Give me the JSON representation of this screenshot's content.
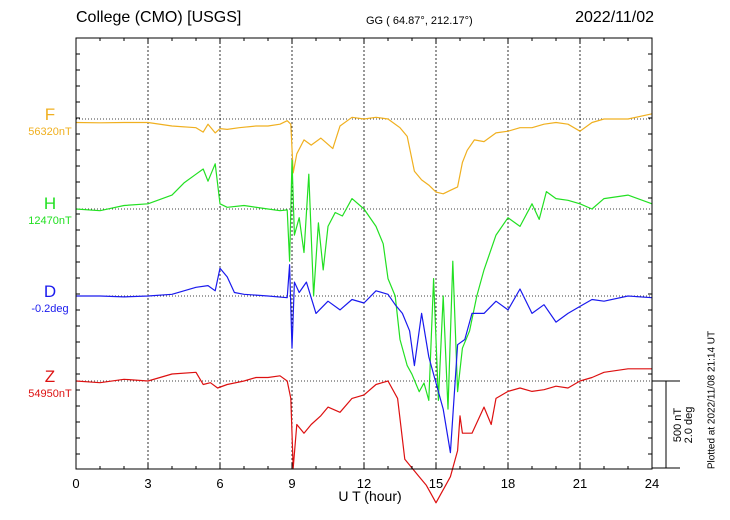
{
  "header": {
    "station": "College (CMO)  [USGS]",
    "coords": "GG ( 64.87°, 212.17°)",
    "date": "2022/11/02"
  },
  "plotted_note": "Plotted at 2022/11/08 21:14 UT",
  "scale": {
    "line1": "500 nT",
    "line2": "2.0 deg"
  },
  "chart_data": {
    "type": "line",
    "title": "College (CMO)  [USGS]",
    "xlabel": "U T (hour)",
    "xlim": [
      0,
      24
    ],
    "xticks": [
      0,
      3,
      6,
      9,
      12,
      15,
      18,
      21,
      24
    ],
    "grid": true,
    "y_units": "nT (500 nT per scale bar)",
    "series": [
      {
        "name": "F",
        "label": "F",
        "baseline_label": "56320nT",
        "color": "#f0b020",
        "x": [
          0,
          1,
          2,
          3,
          4,
          5,
          5.3,
          5.5,
          5.8,
          6,
          6.3,
          6.8,
          7.5,
          8,
          8.5,
          8.8,
          8.95,
          9.05,
          9.2,
          9.5,
          9.8,
          10.2,
          10.7,
          11,
          11.5,
          12,
          12.5,
          13,
          13.5,
          13.8,
          14.1,
          14.4,
          14.7,
          15,
          15.3,
          15.6,
          15.9,
          16.1,
          16.3,
          16.6,
          17,
          17.5,
          18,
          18.5,
          19,
          19.5,
          20,
          20.5,
          21,
          21.5,
          22,
          23,
          24
        ],
        "y": [
          -20,
          -22,
          -20,
          -20,
          -40,
          -50,
          -75,
          -30,
          -80,
          -55,
          -60,
          -50,
          -40,
          -40,
          -30,
          -10,
          -30,
          -310,
          -200,
          -120,
          -150,
          -110,
          -170,
          -40,
          10,
          0,
          10,
          0,
          -50,
          -100,
          -300,
          -350,
          -380,
          -420,
          -430,
          -410,
          -390,
          -250,
          -180,
          -120,
          -130,
          -80,
          -70,
          -50,
          -50,
          -30,
          -20,
          -30,
          -70,
          -20,
          0,
          0,
          30
        ]
      },
      {
        "name": "H",
        "label": "H",
        "baseline_label": "12470nT",
        "color": "#22e022",
        "x": [
          0,
          1,
          2,
          3,
          4,
          4.5,
          5,
          5.3,
          5.5,
          5.8,
          6,
          6.3,
          7,
          8,
          8.5,
          8.8,
          8.9,
          9,
          9.1,
          9.3,
          9.5,
          9.7,
          9.9,
          10.1,
          10.3,
          10.5,
          10.8,
          11.1,
          11.5,
          12,
          12.5,
          12.8,
          13,
          13.3,
          13.5,
          13.8,
          14,
          14.3,
          14.5,
          14.7,
          14.9,
          15.1,
          15.3,
          15.5,
          15.7,
          15.9,
          16.1,
          16.4,
          16.7,
          17,
          17.5,
          18,
          18.5,
          19,
          19.3,
          19.6,
          20,
          20.5,
          21,
          21.5,
          22,
          23,
          24
        ],
        "y": [
          0,
          -10,
          20,
          30,
          80,
          150,
          200,
          230,
          160,
          260,
          30,
          10,
          20,
          0,
          -10,
          -5,
          -300,
          280,
          -150,
          -50,
          -250,
          200,
          -500,
          -80,
          -350,
          -100,
          -20,
          -40,
          60,
          0,
          -100,
          -200,
          -400,
          -500,
          -750,
          -900,
          -950,
          -1050,
          -1000,
          -1100,
          -400,
          -1100,
          -500,
          -1150,
          -300,
          -1050,
          -800,
          -700,
          -500,
          -350,
          -150,
          -50,
          -100,
          30,
          -60,
          100,
          60,
          50,
          30,
          0,
          60,
          80,
          30
        ]
      },
      {
        "name": "D",
        "label": "D",
        "baseline_label": "-0.2deg",
        "color": "#1a1aee",
        "x": [
          0,
          1,
          2,
          3,
          4,
          5,
          5.5,
          5.8,
          6,
          6.3,
          6.6,
          7,
          8,
          8.8,
          8.9,
          9,
          9.1,
          9.3,
          9.6,
          10,
          10.5,
          11,
          11.5,
          12,
          12.5,
          13,
          13.3,
          13.6,
          13.9,
          14.1,
          14.4,
          14.7,
          15,
          15.3,
          15.6,
          15.9,
          16.2,
          16.5,
          17,
          17.5,
          18,
          18.5,
          19,
          19.5,
          20,
          20.5,
          21,
          21.5,
          22,
          23,
          24
        ],
        "y": [
          0,
          0,
          -5,
          0,
          10,
          50,
          60,
          30,
          160,
          110,
          20,
          10,
          0,
          -10,
          180,
          -300,
          80,
          20,
          80,
          -100,
          -30,
          -80,
          -20,
          -40,
          30,
          10,
          -50,
          -100,
          -200,
          -400,
          -100,
          -350,
          -500,
          -650,
          -900,
          -280,
          -250,
          -100,
          -100,
          -30,
          -80,
          40,
          -100,
          -50,
          -150,
          -100,
          -60,
          -20,
          -30,
          0,
          -10
        ]
      },
      {
        "name": "Z",
        "label": "Z",
        "baseline_label": "54950nT",
        "color": "#dd1111",
        "x": [
          0,
          1,
          2,
          3,
          4,
          5,
          5.3,
          5.6,
          5.9,
          6.3,
          7,
          7.5,
          8,
          8.5,
          8.8,
          8.95,
          9.05,
          9.2,
          9.5,
          9.8,
          10.2,
          10.5,
          11,
          11.5,
          12,
          12.5,
          13,
          13.4,
          13.7,
          14,
          14.3,
          14.6,
          14.8,
          15,
          15.2,
          15.4,
          15.6,
          15.9,
          16,
          16.1,
          16.5,
          17,
          17.3,
          17.5,
          18,
          18.5,
          19,
          19.5,
          20,
          20.5,
          21,
          21.5,
          22,
          23,
          24
        ],
        "y": [
          0,
          -10,
          10,
          0,
          40,
          50,
          -20,
          -10,
          -40,
          -20,
          0,
          20,
          20,
          30,
          0,
          -100,
          -500,
          -250,
          -300,
          -250,
          -200,
          -150,
          -180,
          -100,
          -80,
          -20,
          0,
          -100,
          -450,
          -500,
          -550,
          -600,
          -650,
          -700,
          -650,
          -600,
          -550,
          -400,
          -200,
          -300,
          -300,
          -150,
          -250,
          -100,
          -60,
          -40,
          -60,
          -50,
          -30,
          -40,
          0,
          20,
          50,
          70,
          70
        ]
      }
    ]
  }
}
